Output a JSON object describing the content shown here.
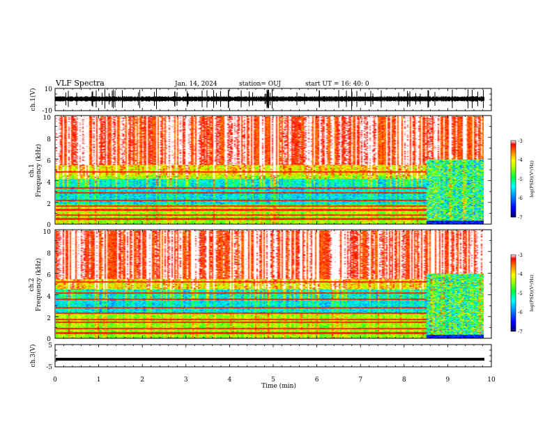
{
  "header": {
    "title": "VLF Spectra",
    "date": "Jan. 14, 2024",
    "station": "station= OUJ",
    "start_time": "start  UT =   16: 40: 0"
  },
  "chart_data": [
    {
      "type": "line",
      "panel": "ch1-waveform",
      "ylabel": "ch.1(V)",
      "ylim": [
        -10,
        10
      ],
      "y_tick_labels": [
        "10",
        "-10"
      ],
      "baseline_v": 0.6,
      "xlim": [
        0,
        10
      ]
    },
    {
      "type": "heatmap",
      "panel": "ch1-spectrogram",
      "ylabel": "ch.1",
      "ylabel2": "Frequency  (kHz)",
      "ylim": [
        0,
        10
      ],
      "y_ticks": [
        0,
        2,
        4,
        6,
        8,
        10
      ],
      "xlim": [
        0,
        9.84
      ],
      "noise_floor_freq_khz": [
        1.8,
        4.2
      ],
      "interference_change_min": 8.5,
      "line_frequencies_khz": [
        0.45,
        0.8,
        1.3,
        1.65,
        2.2,
        2.9,
        3.35,
        4.85
      ],
      "colorbar": {
        "range": [
          -7,
          -3
        ],
        "tick_labels": [
          "-3",
          "-4",
          "-5",
          "-6",
          "-7"
        ],
        "label": "log(PSD)(V²/Hz)"
      }
    },
    {
      "type": "heatmap",
      "panel": "ch2-spectrogram",
      "ylabel": "ch.2",
      "ylabel2": "Frequency  (kHz)",
      "ylim": [
        0,
        10
      ],
      "y_ticks": [
        0,
        2,
        4,
        6,
        8,
        10
      ],
      "xlim": [
        0,
        9.84
      ],
      "noise_floor_freq_khz": [
        2.3,
        4.6
      ],
      "interference_change_min": 8.5,
      "line_frequencies_khz": [
        0.45,
        0.9,
        1.45,
        1.7,
        2.3,
        2.8,
        3.6,
        4.2,
        5.2
      ],
      "colorbar": {
        "range": [
          -7,
          -3
        ],
        "tick_labels": [
          "-3",
          "-4",
          "-5",
          "-6",
          "-7"
        ],
        "label": "log(PSD)(V²/Hz)"
      }
    },
    {
      "type": "line",
      "panel": "ch3-waveform",
      "ylabel": "ch.3(V)",
      "ylim": [
        -5,
        5
      ],
      "y_tick_labels": [
        "5",
        "-5"
      ],
      "baseline_v": -1.6,
      "xlim": [
        0,
        9.84
      ]
    }
  ],
  "x_axis": {
    "label": "Time  (min)",
    "tick_labels": [
      "0",
      "1",
      "2",
      "3",
      "4",
      "5",
      "6",
      "7",
      "8",
      "9",
      "10"
    ]
  },
  "colors": {
    "background": "#ffffff",
    "axes": "#000000",
    "colormap": [
      "#000080",
      "#0000ff",
      "#0080ff",
      "#00ffff",
      "#00ff00",
      "#80ff00",
      "#ffff00",
      "#ff8000",
      "#ff0000"
    ]
  }
}
